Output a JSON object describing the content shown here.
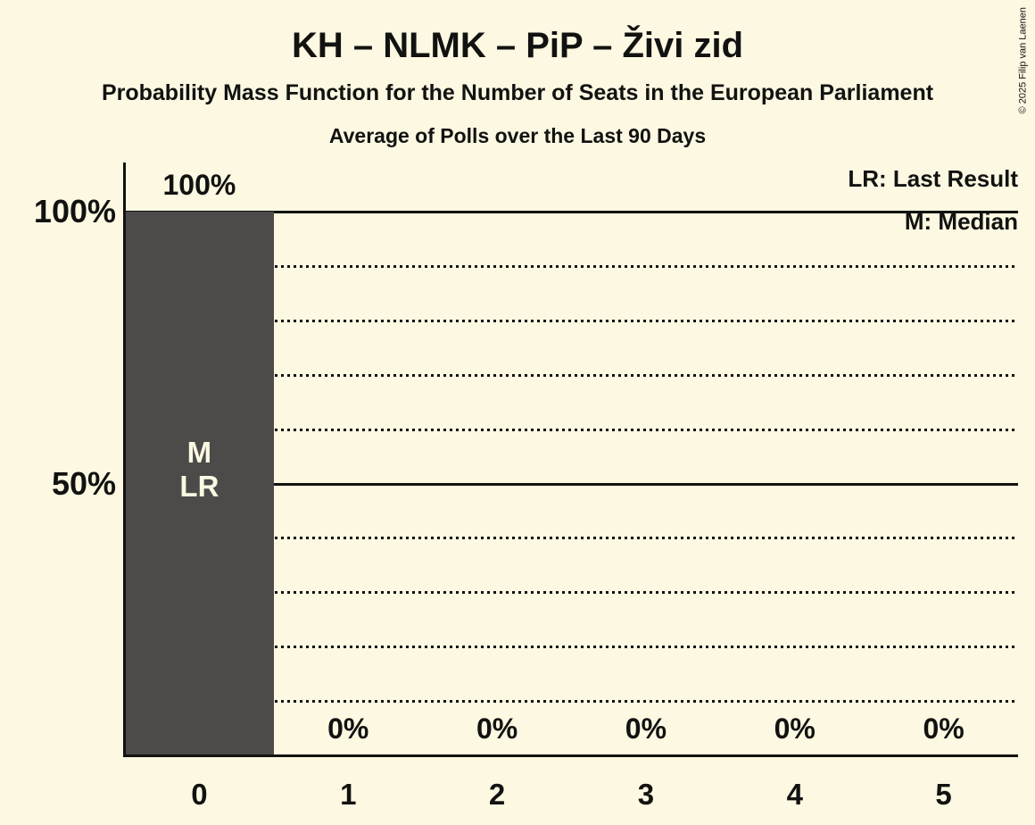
{
  "copyright": "© 2025 Filip van Laenen",
  "colors": {
    "background": "#FCF8E2",
    "bar": "#4C4B49",
    "text": "#121210",
    "bar_label_text": "#FCF8E2"
  },
  "chart_data": {
    "type": "bar",
    "title": "KH – NLMK – PiP – Živi zid",
    "subtitle": "Probability Mass Function for the Number of Seats in the European Parliament",
    "sub_subtitle": "Average of Polls over the Last 90 Days",
    "legend": {
      "lr": "LR: Last Result",
      "m": "M: Median"
    },
    "legend_position": "top-right",
    "categories": [
      "0",
      "1",
      "2",
      "3",
      "4",
      "5"
    ],
    "values": [
      100,
      0,
      0,
      0,
      0,
      0
    ],
    "value_labels": [
      "100%",
      "0%",
      "0%",
      "0%",
      "0%",
      "0%"
    ],
    "xlabel": "",
    "ylabel": "",
    "ylim": [
      0,
      100
    ],
    "yticks": [
      {
        "value": 100,
        "label": "100%"
      },
      {
        "value": 50,
        "label": "50%"
      }
    ],
    "solid_gridlines": [
      100,
      50
    ],
    "dotted_gridlines": [
      90,
      80,
      70,
      60,
      40,
      30,
      20,
      10
    ],
    "median_seats": 0,
    "last_result_seats": 0,
    "bar_annotations": [
      {
        "category": "0",
        "lines": [
          "M",
          "LR"
        ]
      }
    ]
  }
}
